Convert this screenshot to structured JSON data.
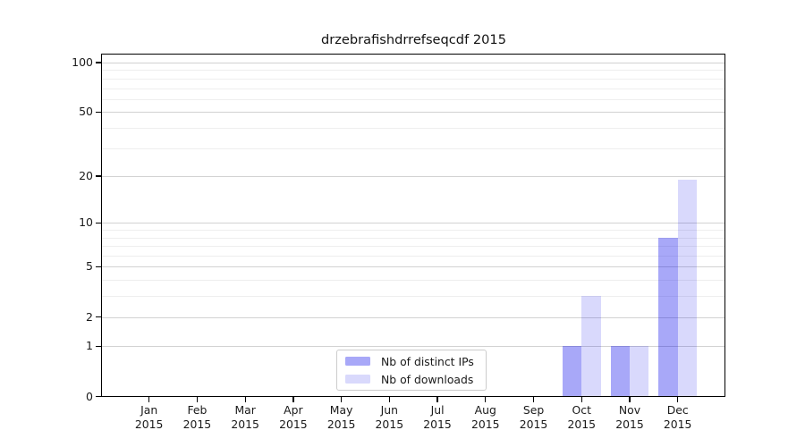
{
  "chart_data": {
    "type": "bar",
    "title": "drzebrafishdrrefseqcdf 2015",
    "categories": [
      "Jan",
      "Feb",
      "Mar",
      "Apr",
      "May",
      "Jun",
      "Jul",
      "Aug",
      "Sep",
      "Oct",
      "Nov",
      "Dec"
    ],
    "category_year": "2015",
    "series": [
      {
        "name": "Nb of distinct IPs",
        "color": "rgba(0,0,235,0.34)",
        "values": [
          0,
          0,
          0,
          0,
          0,
          0,
          0,
          0,
          0,
          1,
          1,
          8
        ]
      },
      {
        "name": "Nb of downloads",
        "color": "rgba(0,0,235,0.15)",
        "values": [
          0,
          0,
          0,
          0,
          0,
          0,
          0,
          0,
          0,
          3,
          1,
          19
        ]
      }
    ],
    "y_axis": {
      "scale": "log10(1+v)",
      "ticks": [
        0,
        1,
        2,
        5,
        10,
        20,
        50,
        100
      ],
      "minor_ticks": [
        3,
        4,
        6,
        7,
        8,
        9,
        30,
        40,
        60,
        70,
        80,
        90
      ],
      "range": [
        0,
        110
      ]
    },
    "x_axis": {
      "tick_label_lines": 2
    },
    "legend": {
      "position": "inside-bottom-center"
    },
    "grid": "on"
  },
  "colors": {
    "background": "#ffffff",
    "spine": "#000000",
    "major_grid": "#d2d2d2",
    "minor_grid": "#eeeeee",
    "text": "#1a1a1a",
    "bar_distinct_ips": "rgba(0,0,235,0.34)",
    "bar_downloads": "rgba(0,0,235,0.15)"
  }
}
